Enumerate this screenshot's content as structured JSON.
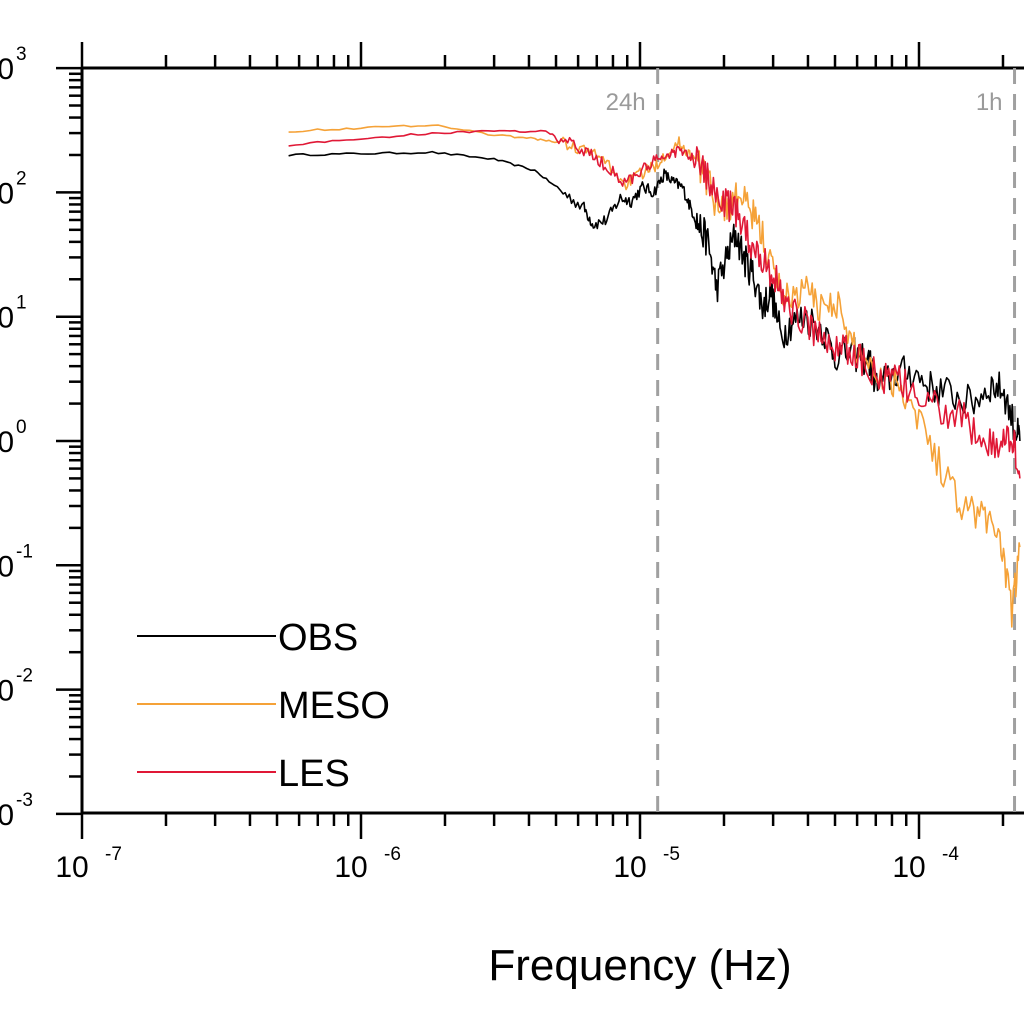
{
  "chart_data": {
    "type": "line",
    "xlabel": "Frequency (Hz)",
    "ylabel": "",
    "xscale": "log",
    "yscale": "log",
    "xlim": [
      1e-07,
      0.00023
    ],
    "ylim": [
      0.001,
      1000.0
    ],
    "xticks": [
      {
        "base": "10",
        "exp": "-7"
      },
      {
        "base": "10",
        "exp": "-6"
      },
      {
        "base": "10",
        "exp": "-5"
      },
      {
        "base": "10",
        "exp": "-4"
      }
    ],
    "yticks": [
      {
        "base": "0",
        "exp": "3"
      },
      {
        "base": "0",
        "exp": "2"
      },
      {
        "base": "0",
        "exp": "1"
      },
      {
        "base": "0",
        "exp": "0"
      },
      {
        "base": "0",
        "exp": "-1"
      },
      {
        "base": "0",
        "exp": "-2"
      },
      {
        "base": "0",
        "exp": "-3"
      }
    ],
    "grid": false,
    "legend_position": "bottom-left",
    "reference_lines": [
      {
        "label": "24h",
        "x": 1.157e-05,
        "color": "#a0a0a0"
      },
      {
        "label": "1h",
        "x": 0.00022,
        "color": "#a0a0a0"
      }
    ],
    "series": [
      {
        "name": "OBS",
        "color": "#000000",
        "x": [
          5.5e-07,
          1e-06,
          1.8e-06,
          3e-06,
          4.2e-06,
          5.3e-06,
          6.3e-06,
          6.8e-06,
          7.6e-06,
          8.5e-06,
          9.3e-06,
          1.02e-05,
          1.12e-05,
          1.22e-05,
          1.32e-05,
          1.42e-05,
          1.52e-05,
          1.62e-05,
          1.75e-05,
          1.88e-05,
          2.05e-05,
          2.2e-05,
          2.38e-05,
          2.55e-05,
          2.75e-05,
          2.95e-05,
          3.2e-05,
          3.5e-05,
          3.9e-05,
          4.5e-05,
          5e-05,
          5.8e-05,
          6.6e-05,
          7.1e-05,
          8.2e-05,
          9.5e-05,
          0.00011,
          0.00013,
          0.000155,
          0.00018,
          0.0002,
          0.00022,
          0.00023
        ],
        "y": [
          200,
          205,
          210,
          185,
          150,
          100,
          75,
          55,
          60,
          90,
          85,
          110,
          100,
          140,
          120,
          110,
          75,
          55,
          40,
          17,
          30,
          47,
          28,
          22,
          12,
          16,
          7,
          9,
          10,
          8,
          5,
          5,
          4.5,
          2.7,
          3.5,
          3.6,
          2.7,
          2.4,
          2.0,
          2.8,
          2.6,
          1.3,
          1.0
        ]
      },
      {
        "name": "MESO",
        "color": "#f5a238",
        "x": [
          5.5e-07,
          1e-06,
          1.8e-06,
          3e-06,
          4.2e-06,
          5.3e-06,
          6.3e-06,
          7.5e-06,
          8.8e-06,
          1e-05,
          1.12e-05,
          1.25e-05,
          1.38e-05,
          1.52e-05,
          1.68e-05,
          1.85e-05,
          2.05e-05,
          2.25e-05,
          2.5e-05,
          2.75e-05,
          3.05e-05,
          3.4e-05,
          3.9e-05,
          4.4e-05,
          5e-05,
          5.7e-05,
          6.5e-05,
          7.5e-05,
          8.5e-05,
          0.0001,
          0.00012,
          0.000145,
          0.00017,
          0.000195,
          0.000215,
          0.00023
        ],
        "y": [
          310,
          330,
          350,
          290,
          270,
          250,
          220,
          180,
          115,
          140,
          160,
          210,
          250,
          200,
          150,
          90,
          75,
          95,
          70,
          45,
          20,
          14,
          17,
          12,
          14,
          6,
          4.5,
          3.2,
          3.0,
          1.6,
          0.6,
          0.3,
          0.25,
          0.18,
          0.04,
          0.14
        ]
      },
      {
        "name": "LES",
        "color": "#e01836",
        "x": [
          5.5e-07,
          1e-06,
          1.8e-06,
          3e-06,
          4.6e-06,
          5.5e-06,
          6.5e-06,
          7.5e-06,
          8.8e-06,
          1e-05,
          1.12e-05,
          1.25e-05,
          1.38e-05,
          1.52e-05,
          1.68e-05,
          1.85e-05,
          2.05e-05,
          2.25e-05,
          2.5e-05,
          2.75e-05,
          3.05e-05,
          3.4e-05,
          3.9e-05,
          4.4e-05,
          5e-05,
          5.7e-05,
          6.5e-05,
          7.5e-05,
          8.5e-05,
          0.0001,
          0.00012,
          0.000145,
          0.00017,
          0.000195,
          0.000215,
          0.00023
        ],
        "y": [
          240,
          270,
          300,
          310,
          310,
          250,
          210,
          165,
          120,
          145,
          175,
          200,
          220,
          190,
          150,
          100,
          80,
          65,
          40,
          30,
          20,
          12,
          9,
          7,
          6,
          5,
          4,
          3.2,
          3.0,
          2.2,
          1.8,
          1.5,
          1.0,
          0.8,
          1.2,
          0.5
        ]
      }
    ]
  }
}
